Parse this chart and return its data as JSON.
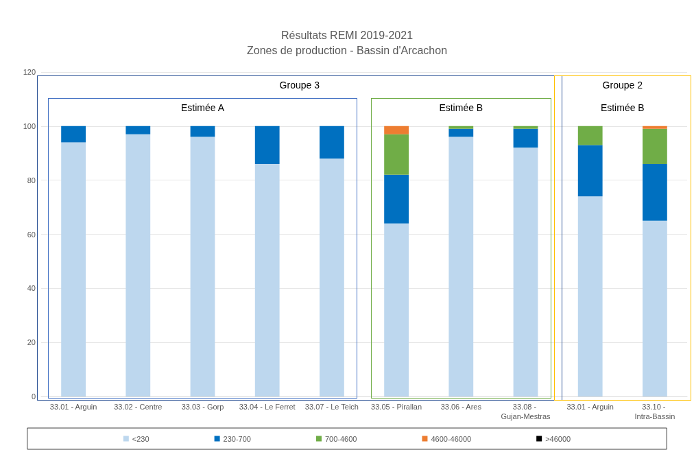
{
  "chart_data": {
    "type": "bar",
    "title": "Résultats REMI 2019-2021",
    "subtitle": "Zones de production - Bassin d'Arcachon",
    "categories": [
      "33.01 - Arguin",
      "33.02 - Centre",
      "33.03 - Gorp",
      "33.04 - Le Ferret",
      "33.07 - Le Teich",
      "33.05 - Pirallan",
      "33.06 - Ares",
      "33.08 - Gujan-Mestras",
      "33.01 - Arguin",
      "33.10 - Intra-Bassin"
    ],
    "series": [
      {
        "name": "<230",
        "color": "#bdd7ee",
        "values": [
          94,
          97,
          96,
          86,
          88,
          64,
          96,
          92,
          74,
          65
        ]
      },
      {
        "name": "230-700",
        "color": "#0070c0",
        "values": [
          6,
          3,
          4,
          14,
          12,
          18,
          3,
          7,
          19,
          21
        ]
      },
      {
        "name": "700-4600",
        "color": "#70ad47",
        "values": [
          0,
          0,
          0,
          0,
          0,
          15,
          1,
          1,
          7,
          13
        ]
      },
      {
        "name": "4600-46000",
        "color": "#ed7d31",
        "values": [
          0,
          0,
          0,
          0,
          0,
          3,
          0,
          0,
          0,
          1
        ]
      },
      {
        "name": ">46000",
        "color": "#000000",
        "values": [
          0,
          0,
          0,
          0,
          0,
          0,
          0,
          0,
          0,
          0
        ]
      }
    ],
    "stacked": true,
    "ylim": [
      0,
      120
    ],
    "yticks": [
      0,
      20,
      40,
      60,
      80,
      100,
      120
    ],
    "grid": "y",
    "legend": "bottom",
    "annotations": [
      "Groupe 3",
      "Estimée A",
      "Estimée B",
      "Groupe 2",
      "Estimée B"
    ]
  }
}
